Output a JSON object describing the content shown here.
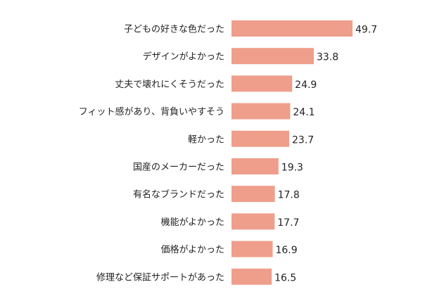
{
  "chart_data": {
    "type": "bar",
    "orientation": "horizontal",
    "categories": [
      "子どもの好きな色だった",
      "デザインがよかった",
      "丈夫で壊れにくそうだった",
      "フィット感があり、背負いやすそう",
      "軽かった",
      "国産のメーカーだった",
      "有名なブランドだった",
      "機能がよかった",
      "価格がよかった",
      "修理など保証サポートがあった"
    ],
    "values": [
      49.7,
      33.8,
      24.9,
      24.1,
      23.7,
      19.3,
      17.8,
      17.7,
      16.9,
      16.5
    ],
    "value_labels": [
      "49.7",
      "33.8",
      "24.9",
      "24.1",
      "23.7",
      "19.3",
      "17.8",
      "17.7",
      "16.9",
      "16.5"
    ],
    "xlim": [
      0,
      49.7
    ],
    "grid": false,
    "legend": "none",
    "bar_color": "#ee9e8a",
    "text_color": "#222222"
  }
}
